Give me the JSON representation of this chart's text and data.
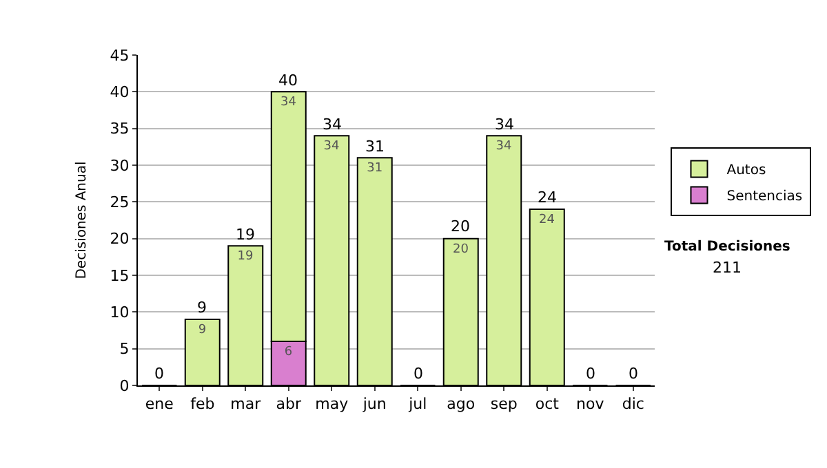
{
  "chart_data": {
    "type": "bar",
    "stacked": true,
    "ylabel": "Decisiones Anual",
    "categories": [
      "ene",
      "feb",
      "mar",
      "abr",
      "may",
      "jun",
      "jul",
      "ago",
      "sep",
      "oct",
      "nov",
      "dic"
    ],
    "series": [
      {
        "name": "Sentencias",
        "color": "#d97fcf",
        "values": [
          0,
          0,
          0,
          6,
          0,
          0,
          0,
          0,
          0,
          0,
          0,
          0
        ],
        "value_labels": [
          null,
          null,
          null,
          "6",
          null,
          null,
          null,
          null,
          null,
          null,
          null,
          null
        ]
      },
      {
        "name": "Autos",
        "color": "#d6ef9c",
        "values": [
          0,
          9,
          19,
          34,
          34,
          31,
          0,
          20,
          34,
          24,
          0,
          0
        ],
        "value_labels": [
          null,
          "9",
          "19",
          "34",
          "34",
          "31",
          null,
          "20",
          "34",
          "24",
          null,
          null
        ]
      }
    ],
    "totals": [
      "0",
      "9",
      "19",
      "40",
      "34",
      "31",
      "0",
      "20",
      "34",
      "24",
      "0",
      "0"
    ],
    "ylim": [
      0,
      45
    ],
    "yticks": [
      0,
      5,
      10,
      15,
      20,
      25,
      30,
      35,
      40,
      45
    ],
    "grid": "y",
    "legend": "right",
    "annotations": [
      "Total Decisiones",
      "211"
    ]
  }
}
